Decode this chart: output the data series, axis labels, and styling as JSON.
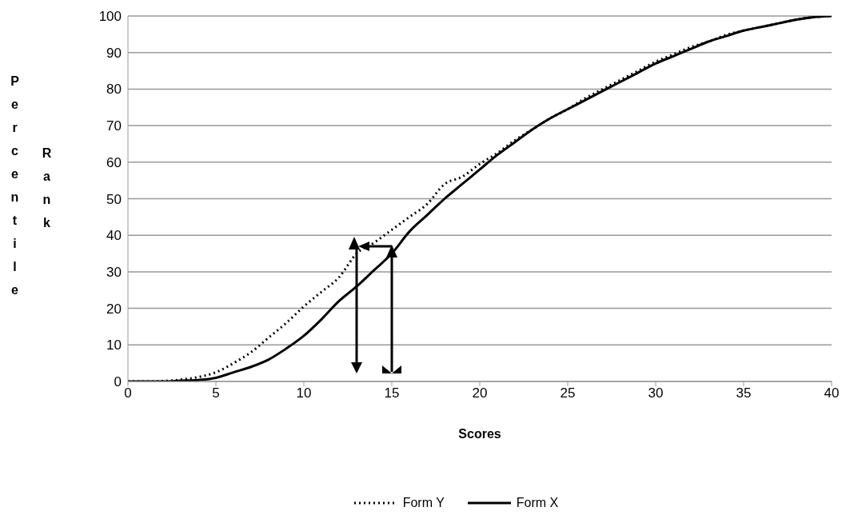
{
  "chart_data": {
    "type": "line",
    "xlabel": "Scores",
    "ylabel": "Percentile Rank",
    "x": [
      0,
      1,
      2,
      3,
      4,
      5,
      6,
      7,
      8,
      9,
      10,
      11,
      12,
      13,
      14,
      15,
      16,
      17,
      18,
      19,
      20,
      21,
      22,
      23,
      24,
      25,
      26,
      27,
      28,
      29,
      30,
      31,
      32,
      33,
      34,
      35,
      36,
      37,
      38,
      39,
      40
    ],
    "series": [
      {
        "name": "Form Y",
        "color": "#000000",
        "line_style": "dotted",
        "values": [
          0,
          0,
          0.1,
          0.5,
          1.2,
          2.5,
          5,
          8,
          12,
          16,
          20.5,
          24.5,
          28.5,
          35,
          38,
          41.5,
          45,
          48.5,
          54,
          56,
          59.5,
          62.5,
          66,
          69,
          72,
          74.5,
          77.5,
          80,
          82.5,
          85,
          87.5,
          89.5,
          91.5,
          93,
          94.8,
          96,
          97,
          98,
          99,
          99.7,
          100
        ]
      },
      {
        "name": "Form X",
        "color": "#000000",
        "line_style": "solid",
        "values": [
          0,
          0,
          0,
          0.2,
          0.4,
          1,
          2.5,
          4,
          6,
          9,
          12.5,
          17,
          22,
          26,
          30.5,
          35,
          41,
          45.5,
          50,
          54,
          58,
          62,
          65.5,
          69,
          72,
          74.5,
          77,
          79.5,
          82,
          84.5,
          87,
          89,
          91,
          93,
          94.5,
          96,
          97,
          98,
          99,
          99.7,
          100
        ]
      }
    ],
    "xlim": [
      0,
      40
    ],
    "xticks": [
      0,
      5,
      10,
      15,
      20,
      25,
      30,
      35,
      40
    ],
    "ylim": [
      0,
      100
    ],
    "yticks": [
      0,
      10,
      20,
      30,
      40,
      50,
      60,
      70,
      80,
      90,
      100
    ],
    "grid": "y",
    "legend": "bottom",
    "marker": "none"
  }
}
